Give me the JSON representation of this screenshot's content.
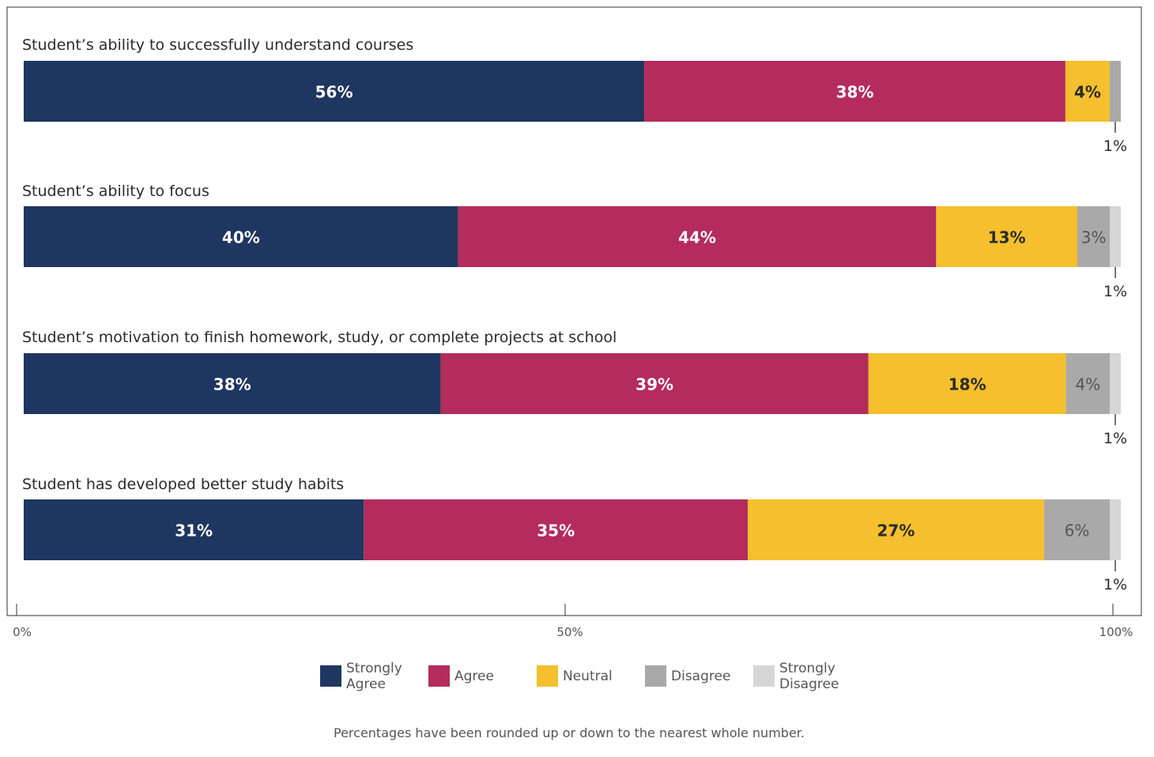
{
  "chart_data": {
    "type": "bar",
    "orientation": "horizontal",
    "stacked": true,
    "categories": [
      "Student’s ability to successfully understand courses",
      "Student’s ability to focus",
      "Student’s motivation to finish homework, study, or complete projects at school",
      "Student has developed better study habits"
    ],
    "series": [
      {
        "name": "Strongly Agree",
        "color": "#1f3660",
        "values": [
          56,
          40,
          38,
          31
        ],
        "labels": [
          "56%",
          "40%",
          "38%",
          "31%"
        ]
      },
      {
        "name": "Agree",
        "color": "#b32c5c",
        "values": [
          38,
          44,
          39,
          35
        ],
        "labels": [
          "38%",
          "44%",
          "39%",
          "35%"
        ]
      },
      {
        "name": "Neutral",
        "color": "#f5bf2d",
        "values": [
          4,
          13,
          18,
          27
        ],
        "labels": [
          "4%",
          "13%",
          "18%",
          "27%"
        ]
      },
      {
        "name": "Disagree",
        "color": "#a9a9a9",
        "values": [
          1,
          3,
          4,
          6
        ],
        "labels": [
          "1%",
          "3%",
          "4%",
          "6%"
        ]
      },
      {
        "name": "Strongly Disagree",
        "color": "#d6d6d6",
        "values": [
          0,
          1,
          1,
          1
        ],
        "labels": [
          "",
          "1%",
          "1%",
          "1%"
        ]
      }
    ],
    "xlim": [
      0,
      100
    ],
    "xticks": [
      "0%",
      "50%",
      "100%"
    ],
    "xtick_values": [
      0,
      50,
      100
    ],
    "legend": [
      {
        "name": "Strongly Agree",
        "lines": [
          "Strongly",
          "Agree"
        ],
        "color": "#1f3660"
      },
      {
        "name": "Agree",
        "lines": [
          "Agree"
        ],
        "color": "#b32c5c"
      },
      {
        "name": "Neutral",
        "lines": [
          "Neutral"
        ],
        "color": "#f5bf2d"
      },
      {
        "name": "Disagree",
        "lines": [
          "Disagree"
        ],
        "color": "#a9a9a9"
      },
      {
        "name": "Strongly Disagree",
        "lines": [
          "Strongly",
          "Disagree"
        ],
        "color": "#d6d6d6"
      }
    ],
    "legend_position": "bottom"
  },
  "footnote": "Percentages have been rounded up or down to the nearest whole number."
}
